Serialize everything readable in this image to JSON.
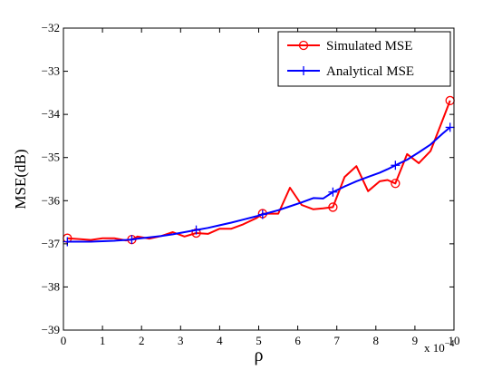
{
  "chart_data": {
    "type": "line",
    "xlabel": "ρ",
    "ylabel": "MSE(dB)",
    "x_multiplier_label": "x 10",
    "x_multiplier_exponent": "−4",
    "xlim": [
      0,
      10
    ],
    "ylim": [
      -39,
      -32
    ],
    "xticks": [
      0,
      1,
      2,
      3,
      4,
      5,
      6,
      7,
      8,
      9,
      10
    ],
    "yticks": [
      -32,
      -33,
      -34,
      -35,
      -36,
      -37,
      -38,
      -39
    ],
    "xtick_labels": [
      "0",
      "1",
      "2",
      "3",
      "4",
      "5",
      "6",
      "7",
      "8",
      "9",
      "10"
    ],
    "ytick_labels": [
      "−32",
      "−33",
      "−34",
      "−35",
      "−36",
      "−37",
      "−38",
      "−39"
    ],
    "grid": false,
    "legend_position": "top-right",
    "series": [
      {
        "name": "Simulated MSE",
        "color": "#ff0000",
        "marker": "circle",
        "marker_every": 6,
        "x": [
          0.1,
          0.4,
          0.7,
          1.0,
          1.3,
          1.6,
          1.75,
          1.9,
          2.2,
          2.5,
          2.8,
          3.1,
          3.4,
          3.7,
          4.0,
          4.3,
          4.6,
          4.95,
          5.1,
          5.5,
          5.8,
          6.1,
          6.4,
          6.65,
          6.9,
          7.2,
          7.5,
          7.8,
          8.1,
          8.3,
          8.5,
          8.8,
          9.1,
          9.4,
          9.7,
          9.9
        ],
        "y": [
          -36.87,
          -36.89,
          -36.91,
          -36.87,
          -36.87,
          -36.92,
          -36.9,
          -36.83,
          -36.88,
          -36.82,
          -36.73,
          -36.83,
          -36.75,
          -36.77,
          -36.65,
          -36.65,
          -36.55,
          -36.4,
          -36.3,
          -36.3,
          -35.7,
          -36.1,
          -36.2,
          -36.18,
          -36.15,
          -35.45,
          -35.2,
          -35.78,
          -35.55,
          -35.52,
          -35.6,
          -34.92,
          -35.13,
          -34.85,
          -34.15,
          -33.68
        ]
      },
      {
        "name": "Analytical MSE",
        "color": "#0000ff",
        "marker": "plus",
        "marker_every": 6,
        "x": [
          0.1,
          0.4,
          0.7,
          1.0,
          1.3,
          1.6,
          1.75,
          1.9,
          2.2,
          2.5,
          2.8,
          3.1,
          3.4,
          3.7,
          4.0,
          4.3,
          4.6,
          4.95,
          5.1,
          5.5,
          5.8,
          6.1,
          6.4,
          6.65,
          6.9,
          7.2,
          7.5,
          7.8,
          8.1,
          8.3,
          8.5,
          8.8,
          9.1,
          9.4,
          9.7,
          9.9
        ],
        "y": [
          -36.95,
          -36.95,
          -36.95,
          -36.94,
          -36.93,
          -36.91,
          -36.9,
          -36.88,
          -36.85,
          -36.82,
          -36.78,
          -36.73,
          -36.68,
          -36.63,
          -36.57,
          -36.51,
          -36.44,
          -36.36,
          -36.32,
          -36.22,
          -36.13,
          -36.04,
          -35.94,
          -35.95,
          -35.8,
          -35.67,
          -35.55,
          -35.45,
          -35.35,
          -35.27,
          -35.18,
          -35.05,
          -34.88,
          -34.7,
          -34.45,
          -34.3
        ]
      }
    ]
  }
}
